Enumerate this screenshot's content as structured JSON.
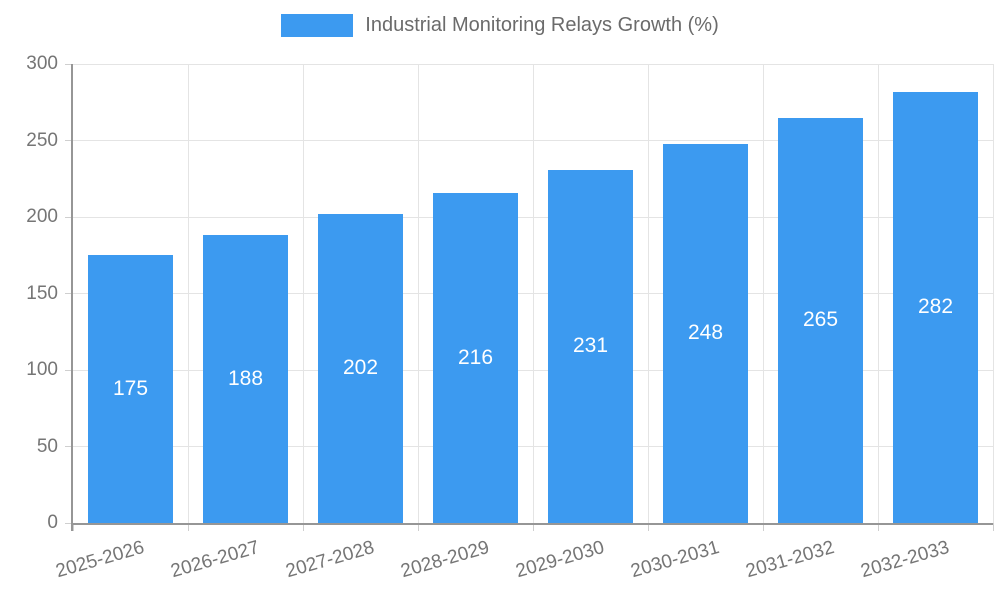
{
  "chart_data": {
    "type": "bar",
    "title": "",
    "legend_label": "Industrial Monitoring Relays Growth (%)",
    "legend_position": "top-center",
    "categories": [
      "2025-2026",
      "2026-2027",
      "2027-2028",
      "2028-2029",
      "2029-2030",
      "2030-2031",
      "2031-2032",
      "2032-2033"
    ],
    "values": [
      175,
      188,
      202,
      216,
      231,
      248,
      265,
      282
    ],
    "value_labels_shown": true,
    "value_label_placement": "inside-center",
    "xlabel": "",
    "ylabel": "",
    "ylim": [
      0,
      300
    ],
    "yticks": [
      0,
      50,
      100,
      150,
      200,
      250,
      300
    ],
    "grid": true,
    "colors": {
      "bar": "#3C9AF0",
      "grid": "#e4e4e4",
      "axis": "#969696",
      "tick": "#cfcfcf",
      "axis_label_text": "#757575",
      "legend_text": "#6b6b6b",
      "value_label_text": "#ffffff",
      "background": "#ffffff"
    }
  }
}
